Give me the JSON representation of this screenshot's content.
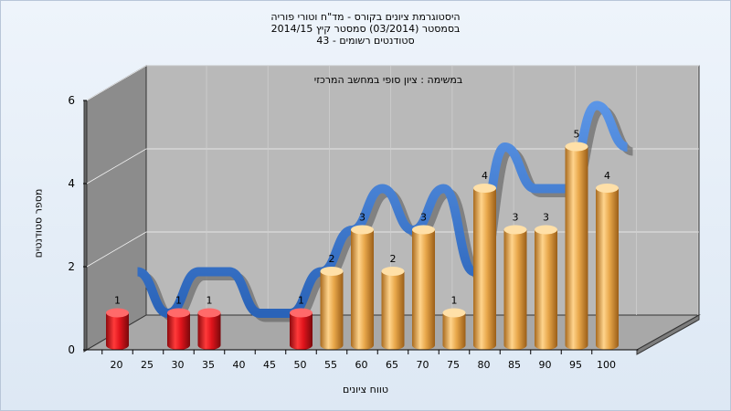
{
  "chart_data": {
    "type": "bar",
    "title_lines": [
      "היסטוגרמת ציונים בקורס - מד\"ח וטורי פוריה",
      "בסמסטר  (03/2014)  סמסטר קיץ 2014/15",
      "סטודנטים רשומים - 43"
    ],
    "annotation": "במשימה : ציון סופי במחשב המרכזי",
    "xlabel": "טווח ציונים",
    "ylabel": "מספר סטודנטים",
    "ylim": [
      0,
      6
    ],
    "yticks": [
      "0",
      "2",
      "4",
      "6"
    ],
    "categories": [
      "20",
      "25",
      "30",
      "35",
      "40",
      "45",
      "50",
      "55",
      "60",
      "65",
      "70",
      "75",
      "80",
      "85",
      "90",
      "95",
      "100"
    ],
    "values": [
      1,
      0,
      1,
      1,
      0,
      0,
      1,
      2,
      3,
      2,
      3,
      1,
      4,
      3,
      3,
      5,
      4
    ],
    "value_labels": [
      "1",
      "",
      "1",
      "1",
      "",
      "",
      "1",
      "2",
      "3",
      "2",
      "3",
      "1",
      "4",
      "3",
      "3",
      "5",
      "4"
    ],
    "failing_threshold": "55",
    "colors": {
      "failing_bar": "#e0141c",
      "passing_bar": "#e8a74a",
      "curve": "#3a7bd5",
      "back_wall": "#b9b9b9",
      "side_wall": "#8c8c8c",
      "floor": "#a8a8a8"
    },
    "grid": true
  }
}
